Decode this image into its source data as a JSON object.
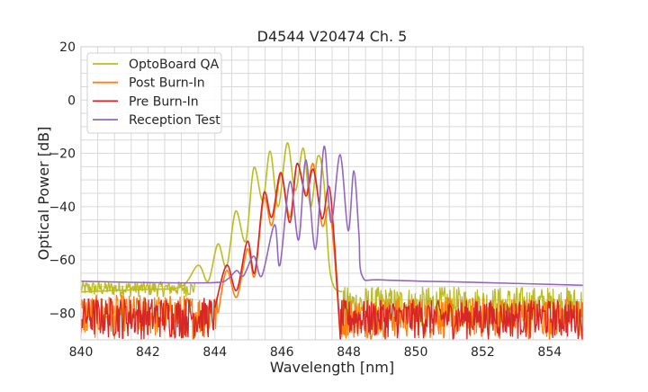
{
  "chart_data": {
    "type": "line",
    "title": "D4544 V20474 Ch. 5",
    "xlabel": "Wavelength [nm]",
    "ylabel": "Optical Power [dB]",
    "xlim": [
      840,
      855
    ],
    "ylim": [
      -90,
      20
    ],
    "xticks": [
      840,
      842,
      844,
      846,
      848,
      850,
      852,
      854
    ],
    "yticks": [
      20,
      0,
      -20,
      -40,
      -60,
      -80
    ],
    "x_minor_step": 0.5,
    "y_minor_step": 5,
    "grid": true,
    "legend_position": "top-left",
    "series": [
      {
        "name": "OptoBoard QA",
        "color": "#bcbd22",
        "points": [
          [
            840,
            -72
          ],
          [
            841,
            -71.5
          ],
          [
            842,
            -71
          ],
          [
            843,
            -70
          ],
          [
            843.5,
            -62
          ],
          [
            843.8,
            -68
          ],
          [
            844.09,
            -54
          ],
          [
            844.35,
            -62.6
          ],
          [
            844.62,
            -41.7
          ],
          [
            844.92,
            -52.9
          ],
          [
            845.16,
            -25.5
          ],
          [
            845.43,
            -37.7
          ],
          [
            845.65,
            -19.2
          ],
          [
            845.89,
            -40
          ],
          [
            846.16,
            -16.1
          ],
          [
            846.4,
            -34
          ],
          [
            846.64,
            -18.1
          ],
          [
            846.86,
            -40
          ],
          [
            847.07,
            -21.2
          ],
          [
            847.25,
            -30
          ],
          [
            847.4,
            -60
          ],
          [
            847.55,
            -70
          ],
          [
            847.8,
            -72
          ]
        ],
        "noise_bands": [
          {
            "x": [
              840,
              843.4
            ],
            "y": [
              -74,
              -68
            ]
          },
          {
            "x": [
              847.8,
              855
            ],
            "y": [
              -86,
              -70
            ]
          }
        ]
      },
      {
        "name": "Post Burn-In",
        "color": "#ff7f0e",
        "points": [
          [
            844.1,
            -80
          ],
          [
            844.35,
            -64
          ],
          [
            844.65,
            -74
          ],
          [
            844.97,
            -56
          ],
          [
            845.19,
            -66
          ],
          [
            845.46,
            -37
          ],
          [
            845.7,
            -47
          ],
          [
            845.97,
            -28
          ],
          [
            846.24,
            -44
          ],
          [
            846.45,
            -24
          ],
          [
            846.72,
            -35
          ],
          [
            846.94,
            -24
          ],
          [
            847.2,
            -47
          ],
          [
            847.4,
            -40
          ],
          [
            847.55,
            -55
          ],
          [
            847.75,
            -90
          ]
        ],
        "noise_bands": [
          {
            "x": [
              840,
              844.1
            ],
            "y": [
              -90,
              -73
            ]
          },
          {
            "x": [
              847.75,
              855
            ],
            "y": [
              -90,
              -74
            ]
          }
        ]
      },
      {
        "name": "Pre Burn-In",
        "color": "#d62728",
        "points": [
          [
            844.0,
            -78
          ],
          [
            844.35,
            -62
          ],
          [
            844.65,
            -71.4
          ],
          [
            844.97,
            -53
          ],
          [
            845.19,
            -64.7
          ],
          [
            845.46,
            -35
          ],
          [
            845.7,
            -44
          ],
          [
            845.97,
            -27.2
          ],
          [
            846.24,
            -46
          ],
          [
            846.45,
            -23.9
          ],
          [
            846.72,
            -36
          ],
          [
            846.94,
            -26
          ],
          [
            847.2,
            -44.5
          ],
          [
            847.4,
            -32.3
          ],
          [
            847.55,
            -50
          ],
          [
            847.75,
            -90
          ]
        ],
        "noise_bands": [
          {
            "x": [
              840,
              844.0
            ],
            "y": [
              -90,
              -74
            ]
          },
          {
            "x": [
              847.75,
              855
            ],
            "y": [
              -90,
              -75
            ]
          }
        ]
      },
      {
        "name": "Reception Test",
        "color": "#9467bd",
        "points": [
          [
            840,
            -68
          ],
          [
            842,
            -68.5
          ],
          [
            844,
            -68.5
          ],
          [
            844.4,
            -67
          ],
          [
            844.65,
            -64
          ],
          [
            844.85,
            -66
          ],
          [
            845.16,
            -58.6
          ],
          [
            845.4,
            -66
          ],
          [
            845.78,
            -46.8
          ],
          [
            845.94,
            -62
          ],
          [
            846.24,
            -30.6
          ],
          [
            846.5,
            -52.5
          ],
          [
            846.72,
            -22.5
          ],
          [
            847.0,
            -56
          ],
          [
            847.26,
            -17.4
          ],
          [
            847.47,
            -46
          ],
          [
            847.74,
            -20.5
          ],
          [
            847.98,
            -49
          ],
          [
            848.15,
            -26.6
          ],
          [
            848.3,
            -50
          ],
          [
            848.4,
            -66
          ],
          [
            849,
            -67.5
          ],
          [
            852,
            -68.5
          ],
          [
            855,
            -69.5
          ]
        ],
        "noise_bands": []
      }
    ]
  }
}
